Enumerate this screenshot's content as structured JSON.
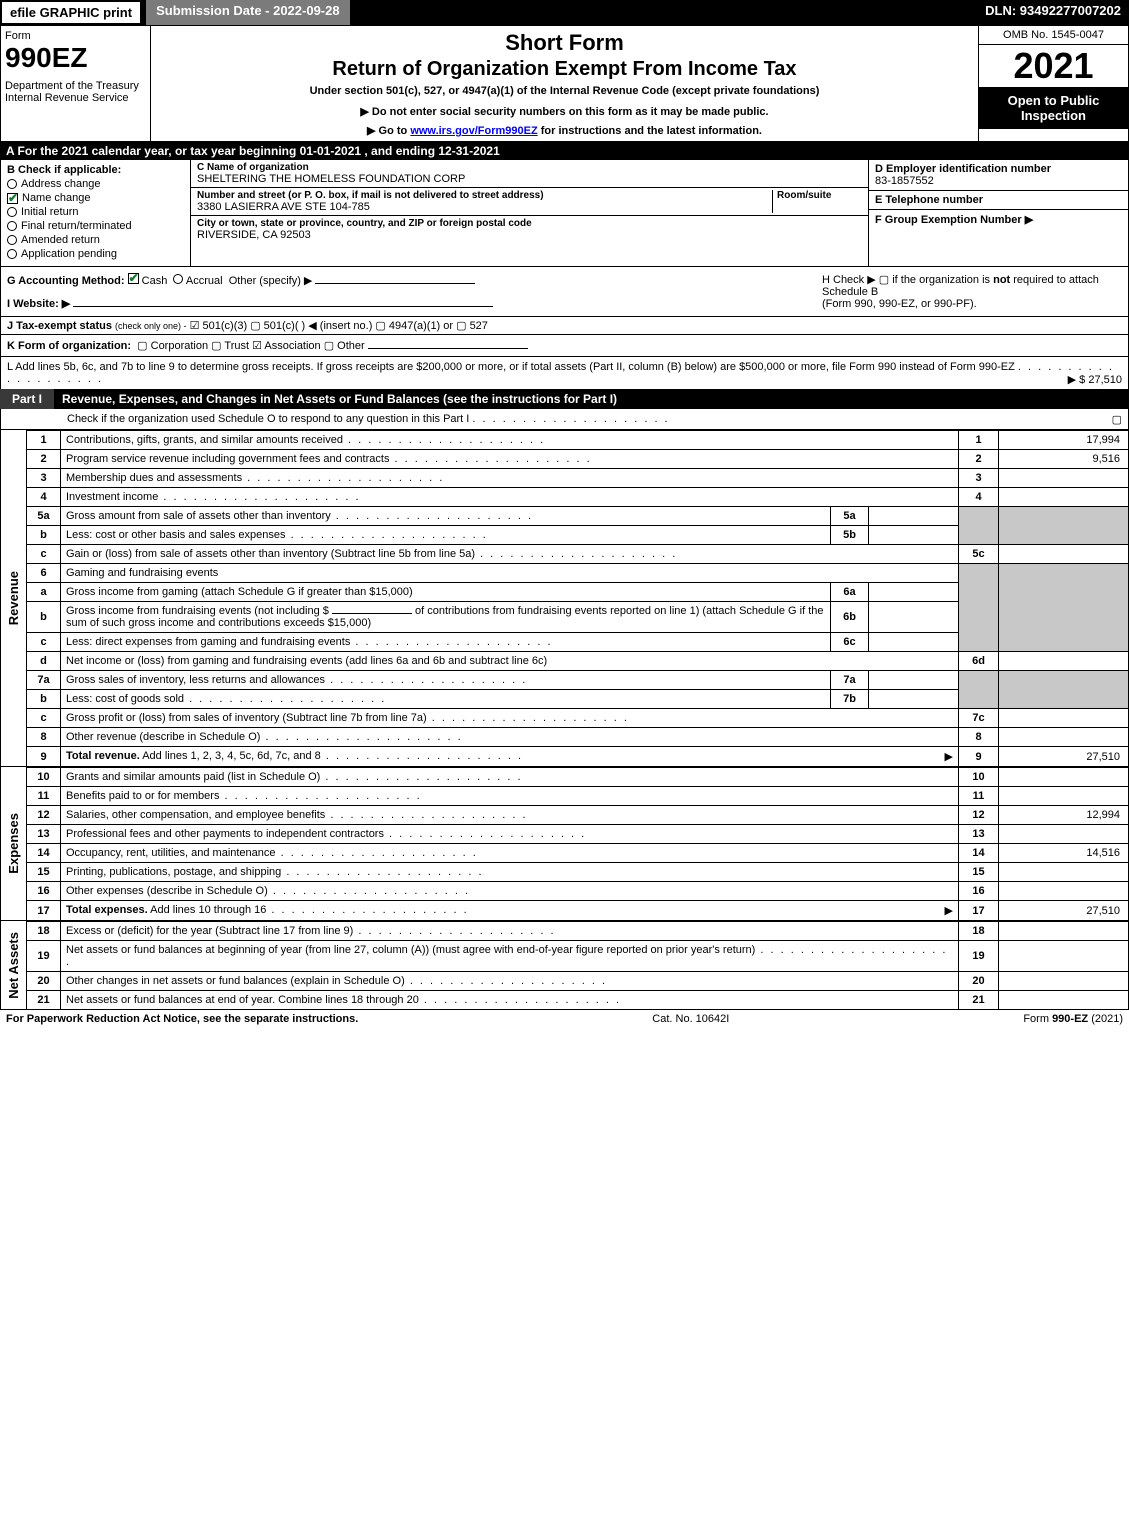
{
  "topbar": {
    "efile": "efile GRAPHIC print",
    "submission": "Submission Date - 2022-09-28",
    "dln": "DLN: 93492277007202"
  },
  "header": {
    "form_word": "Form",
    "form_no": "990EZ",
    "dept": "Department of the Treasury\nInternal Revenue Service",
    "short": "Short Form",
    "title": "Return of Organization Exempt From Income Tax",
    "sub1": "Under section 501(c), 527, or 4947(a)(1) of the Internal Revenue Code (except private foundations)",
    "sub2": "▶ Do not enter social security numbers on this form as it may be made public.",
    "sub3_pre": "▶ Go to ",
    "sub3_link": "www.irs.gov/Form990EZ",
    "sub3_post": " for instructions and the latest information.",
    "omb": "OMB No. 1545-0047",
    "year": "2021",
    "open": "Open to Public Inspection"
  },
  "rowA": "A  For the 2021 calendar year, or tax year beginning 01-01-2021 , and ending 12-31-2021",
  "secB": {
    "label": "B  Check if applicable:",
    "items": [
      {
        "txt": "Address change",
        "checked": false,
        "shape": "circle"
      },
      {
        "txt": "Name change",
        "checked": true,
        "shape": "check"
      },
      {
        "txt": "Initial return",
        "checked": false,
        "shape": "circle"
      },
      {
        "txt": "Final return/terminated",
        "checked": false,
        "shape": "circle"
      },
      {
        "txt": "Amended return",
        "checked": false,
        "shape": "circle"
      },
      {
        "txt": "Application pending",
        "checked": false,
        "shape": "circle"
      }
    ]
  },
  "secC": {
    "c_hdr": "C Name of organization",
    "c_val": "SHELTERING THE HOMELESS FOUNDATION CORP",
    "addr_hdr": "Number and street (or P. O. box, if mail is not delivered to street address)",
    "room_hdr": "Room/suite",
    "addr_val": "3380 LASIERRA AVE STE 104-785",
    "city_hdr": "City or town, state or province, country, and ZIP or foreign postal code",
    "city_val": "RIVERSIDE, CA  92503"
  },
  "secD": {
    "d_hdr": "D Employer identification number",
    "d_val": "83-1857552",
    "e_hdr": "E Telephone number",
    "e_val": "",
    "f_hdr": "F Group Exemption Number  ▶",
    "f_val": ""
  },
  "secG": {
    "label": "G Accounting Method:",
    "cash": "Cash",
    "accrual": "Accrual",
    "other": "Other (specify) ▶"
  },
  "secH": {
    "txt1": "H  Check ▶  ▢  if the organization is ",
    "not": "not",
    "txt2": " required to attach Schedule B",
    "txt3": "(Form 990, 990-EZ, or 990-PF)."
  },
  "secI": {
    "label": "I Website: ▶"
  },
  "secJ": {
    "label": "J Tax-exempt status",
    "sub": "(check only one) -",
    "opts": "☑ 501(c)(3)  ▢ 501(c)(  ) ◀ (insert no.)  ▢ 4947(a)(1) or  ▢ 527"
  },
  "secK": {
    "label": "K Form of organization:",
    "opts": "▢ Corporation   ▢ Trust   ☑ Association   ▢ Other"
  },
  "secL": {
    "txt": "L Add lines 5b, 6c, and 7b to line 9 to determine gross receipts. If gross receipts are $200,000 or more, or if total assets (Part II, column (B) below) are $500,000 or more, file Form 990 instead of Form 990-EZ",
    "amt": "▶ $ 27,510"
  },
  "part1": {
    "tag": "Part I",
    "title": "Revenue, Expenses, and Changes in Net Assets or Fund Balances (see the instructions for Part I)",
    "check": "Check if the organization used Schedule O to respond to any question in this Part I",
    "check_end": "▢"
  },
  "revenue_label": "Revenue",
  "expenses_label": "Expenses",
  "netassets_label": "Net Assets",
  "lines": {
    "l1": {
      "no": "1",
      "txt": "Contributions, gifts, grants, and similar amounts received",
      "ln": "1",
      "amt": "17,994"
    },
    "l2": {
      "no": "2",
      "txt": "Program service revenue including government fees and contracts",
      "ln": "2",
      "amt": "9,516"
    },
    "l3": {
      "no": "3",
      "txt": "Membership dues and assessments",
      "ln": "3",
      "amt": ""
    },
    "l4": {
      "no": "4",
      "txt": "Investment income",
      "ln": "4",
      "amt": ""
    },
    "l5a": {
      "no": "5a",
      "txt": "Gross amount from sale of assets other than inventory",
      "sub": "5a",
      "subval": ""
    },
    "l5b": {
      "no": "b",
      "txt": "Less: cost or other basis and sales expenses",
      "sub": "5b",
      "subval": ""
    },
    "l5c": {
      "no": "c",
      "txt": "Gain or (loss) from sale of assets other than inventory (Subtract line 5b from line 5a)",
      "ln": "5c",
      "amt": ""
    },
    "l6": {
      "no": "6",
      "txt": "Gaming and fundraising events"
    },
    "l6a": {
      "no": "a",
      "txt": "Gross income from gaming (attach Schedule G if greater than $15,000)",
      "sub": "6a",
      "subval": ""
    },
    "l6b": {
      "no": "b",
      "txt1": "Gross income from fundraising events (not including $",
      "txt2": "of contributions from fundraising events reported on line 1) (attach Schedule G if the sum of such gross income and contributions exceeds $15,000)",
      "sub": "6b",
      "subval": ""
    },
    "l6c": {
      "no": "c",
      "txt": "Less: direct expenses from gaming and fundraising events",
      "sub": "6c",
      "subval": ""
    },
    "l6d": {
      "no": "d",
      "txt": "Net income or (loss) from gaming and fundraising events (add lines 6a and 6b and subtract line 6c)",
      "ln": "6d",
      "amt": ""
    },
    "l7a": {
      "no": "7a",
      "txt": "Gross sales of inventory, less returns and allowances",
      "sub": "7a",
      "subval": ""
    },
    "l7b": {
      "no": "b",
      "txt": "Less: cost of goods sold",
      "sub": "7b",
      "subval": ""
    },
    "l7c": {
      "no": "c",
      "txt": "Gross profit or (loss) from sales of inventory (Subtract line 7b from line 7a)",
      "ln": "7c",
      "amt": ""
    },
    "l8": {
      "no": "8",
      "txt": "Other revenue (describe in Schedule O)",
      "ln": "8",
      "amt": ""
    },
    "l9": {
      "no": "9",
      "txt": "Total revenue. Add lines 1, 2, 3, 4, 5c, 6d, 7c, and 8",
      "ln": "9",
      "amt": "27,510",
      "arrow": true,
      "bold": true
    },
    "l10": {
      "no": "10",
      "txt": "Grants and similar amounts paid (list in Schedule O)",
      "ln": "10",
      "amt": ""
    },
    "l11": {
      "no": "11",
      "txt": "Benefits paid to or for members",
      "ln": "11",
      "amt": ""
    },
    "l12": {
      "no": "12",
      "txt": "Salaries, other compensation, and employee benefits",
      "ln": "12",
      "amt": "12,994"
    },
    "l13": {
      "no": "13",
      "txt": "Professional fees and other payments to independent contractors",
      "ln": "13",
      "amt": ""
    },
    "l14": {
      "no": "14",
      "txt": "Occupancy, rent, utilities, and maintenance",
      "ln": "14",
      "amt": "14,516"
    },
    "l15": {
      "no": "15",
      "txt": "Printing, publications, postage, and shipping",
      "ln": "15",
      "amt": ""
    },
    "l16": {
      "no": "16",
      "txt": "Other expenses (describe in Schedule O)",
      "ln": "16",
      "amt": ""
    },
    "l17": {
      "no": "17",
      "txt": "Total expenses. Add lines 10 through 16",
      "ln": "17",
      "amt": "27,510",
      "arrow": true,
      "bold": true
    },
    "l18": {
      "no": "18",
      "txt": "Excess or (deficit) for the year (Subtract line 17 from line 9)",
      "ln": "18",
      "amt": ""
    },
    "l19": {
      "no": "19",
      "txt": "Net assets or fund balances at beginning of year (from line 27, column (A)) (must agree with end-of-year figure reported on prior year's return)",
      "ln": "19",
      "amt": ""
    },
    "l20": {
      "no": "20",
      "txt": "Other changes in net assets or fund balances (explain in Schedule O)",
      "ln": "20",
      "amt": ""
    },
    "l21": {
      "no": "21",
      "txt": "Net assets or fund balances at end of year. Combine lines 18 through 20",
      "ln": "21",
      "amt": ""
    }
  },
  "footer": {
    "left": "For Paperwork Reduction Act Notice, see the separate instructions.",
    "mid": "Cat. No. 10642I",
    "right": "Form 990-EZ (2021)"
  }
}
